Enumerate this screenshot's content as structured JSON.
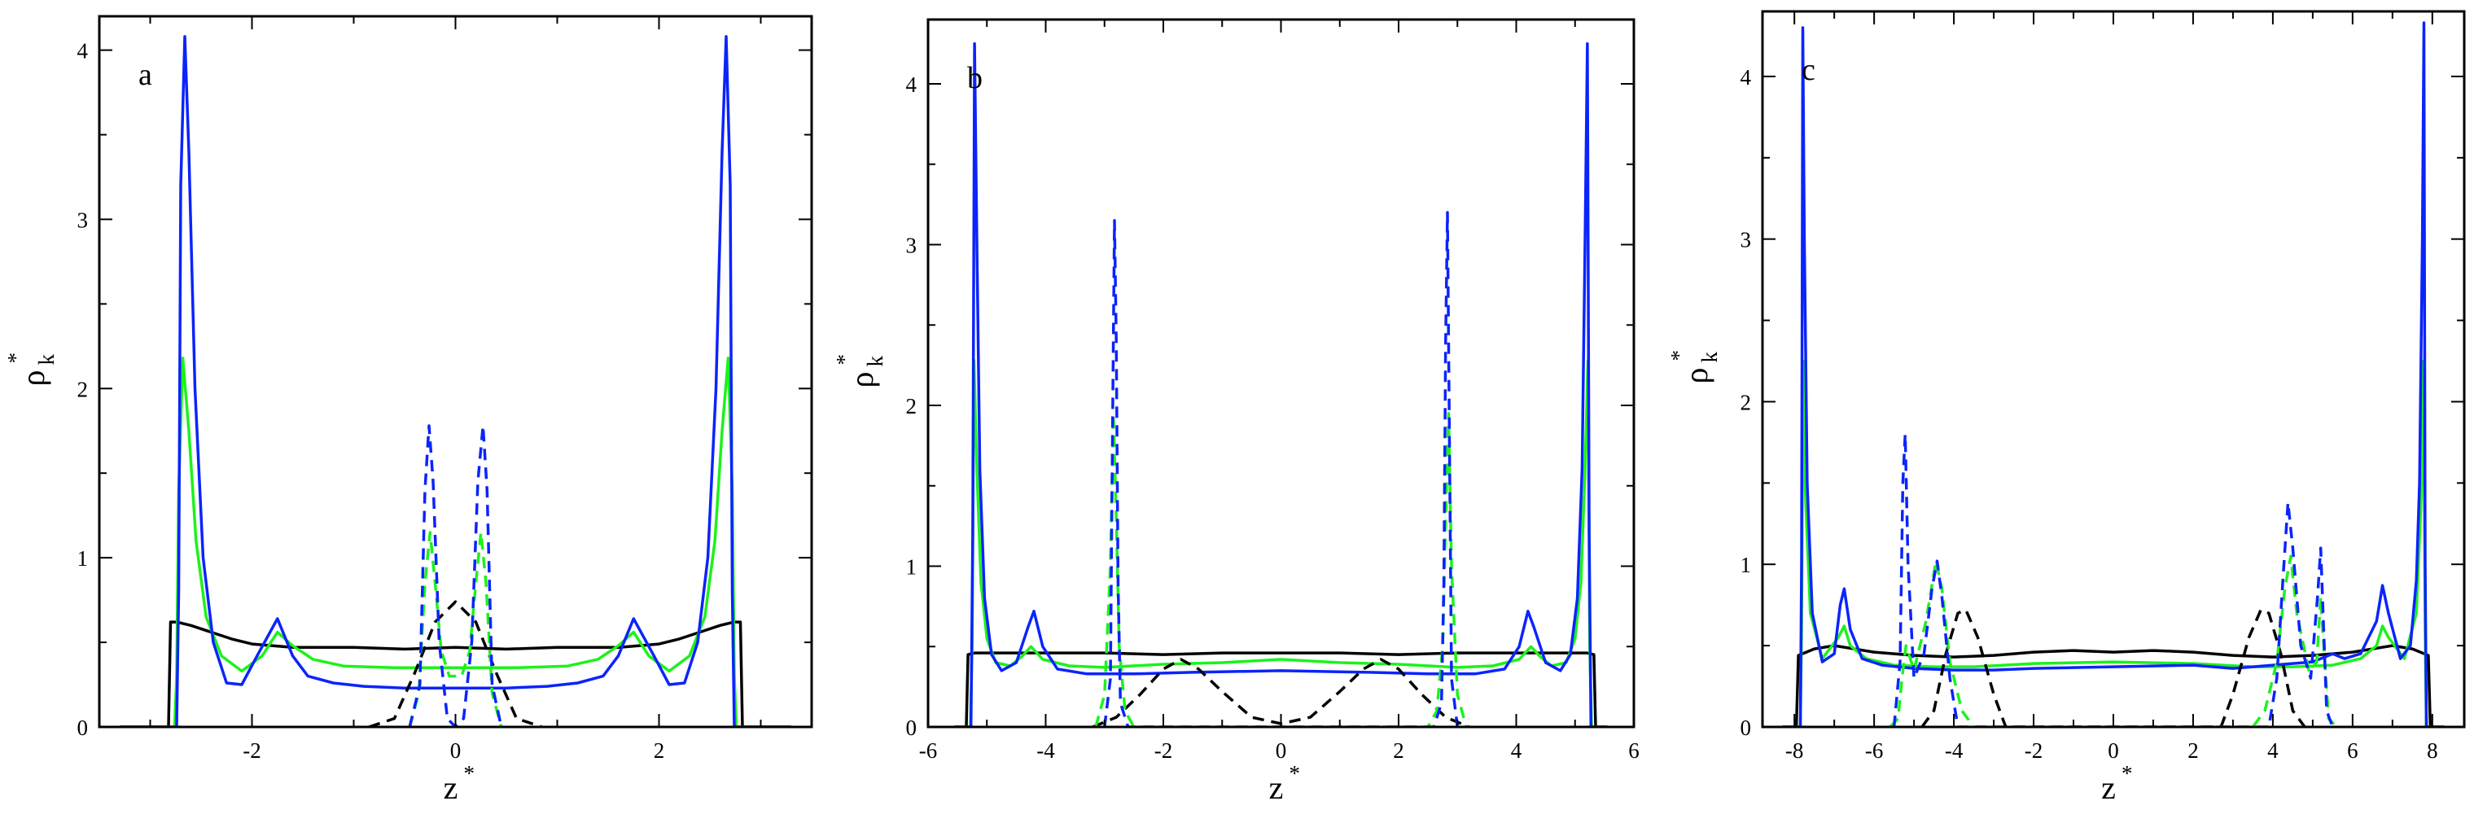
{
  "chart_data": [
    {
      "type": "line",
      "panel_label": "a",
      "xlabel": "z",
      "xlabel_sup": "*",
      "ylabel": "ρ",
      "ylabel_sub": "k",
      "ylabel_sup": "*",
      "xlim": [
        -3.5,
        3.5
      ],
      "ylim": [
        0,
        4.2
      ],
      "xticks": [
        -2,
        0,
        2
      ],
      "yticks": [
        0,
        1,
        2,
        3,
        4
      ],
      "colors": {
        "blue": "#0b24fb",
        "green": "#1cf21c",
        "black": "#000000"
      },
      "series": [
        {
          "color": "black",
          "style": "solid",
          "x": [
            -3.3,
            -2.82,
            -2.8,
            -2.74,
            -2.6,
            -2.4,
            -2.2,
            -2.0,
            -1.6,
            -1.0,
            -0.5,
            0,
            0.5,
            1.0,
            1.6,
            2.0,
            2.2,
            2.4,
            2.6,
            2.74,
            2.8,
            2.82,
            3.3
          ],
          "y": [
            0,
            0,
            0.62,
            0.62,
            0.6,
            0.56,
            0.52,
            0.49,
            0.47,
            0.47,
            0.46,
            0.47,
            0.46,
            0.47,
            0.47,
            0.49,
            0.52,
            0.56,
            0.6,
            0.62,
            0.62,
            0,
            0
          ]
        },
        {
          "color": "green",
          "style": "solid",
          "x": [
            -3.3,
            -2.76,
            -2.74,
            -2.72,
            -2.68,
            -2.62,
            -2.55,
            -2.45,
            -2.3,
            -2.1,
            -1.9,
            -1.75,
            -1.6,
            -1.4,
            -1.1,
            -0.6,
            0,
            0.6,
            1.1,
            1.4,
            1.6,
            1.75,
            1.9,
            2.1,
            2.3,
            2.45,
            2.55,
            2.62,
            2.68,
            2.72,
            2.74,
            2.76,
            3.3
          ],
          "y": [
            0,
            0,
            0.3,
            1.4,
            2.18,
            1.75,
            1.1,
            0.65,
            0.42,
            0.33,
            0.42,
            0.56,
            0.48,
            0.4,
            0.36,
            0.35,
            0.35,
            0.35,
            0.36,
            0.4,
            0.48,
            0.56,
            0.42,
            0.33,
            0.42,
            0.65,
            1.1,
            1.75,
            2.18,
            1.4,
            0.3,
            0,
            0
          ]
        },
        {
          "color": "blue",
          "style": "solid",
          "x": [
            -3.3,
            -2.74,
            -2.72,
            -2.7,
            -2.66,
            -2.62,
            -2.56,
            -2.48,
            -2.38,
            -2.25,
            -2.1,
            -1.95,
            -1.75,
            -1.6,
            -1.45,
            -1.2,
            -0.9,
            -0.5,
            0,
            0.5,
            0.9,
            1.2,
            1.45,
            1.6,
            1.75,
            1.95,
            2.1,
            2.25,
            2.38,
            2.48,
            2.56,
            2.62,
            2.66,
            2.7,
            2.72,
            2.74,
            3.3
          ],
          "y": [
            0,
            0,
            0.8,
            3.2,
            4.08,
            3.4,
            2.0,
            1.0,
            0.5,
            0.26,
            0.25,
            0.42,
            0.64,
            0.42,
            0.3,
            0.26,
            0.24,
            0.23,
            0.23,
            0.23,
            0.24,
            0.26,
            0.3,
            0.42,
            0.64,
            0.42,
            0.25,
            0.26,
            0.5,
            1.0,
            2.0,
            3.4,
            4.08,
            3.2,
            0.8,
            0,
            0
          ]
        },
        {
          "color": "black",
          "style": "dashed",
          "x": [
            -0.85,
            -0.6,
            -0.4,
            -0.2,
            0,
            0.2,
            0.4,
            0.6,
            0.85
          ],
          "y": [
            0,
            0.05,
            0.32,
            0.62,
            0.74,
            0.62,
            0.32,
            0.05,
            0
          ]
        },
        {
          "color": "green",
          "style": "dashed",
          "x": [
            -0.45,
            -0.36,
            -0.3,
            -0.25,
            -0.2,
            -0.14,
            -0.06,
            0.06,
            0.14,
            0.2,
            0.25,
            0.3,
            0.36,
            0.45
          ],
          "y": [
            0,
            0.2,
            0.85,
            1.15,
            0.85,
            0.45,
            0.3,
            0.3,
            0.45,
            0.85,
            1.15,
            0.85,
            0.2,
            0
          ]
        },
        {
          "color": "blue",
          "style": "dashed",
          "x": [
            -0.45,
            -0.35,
            -0.3,
            -0.26,
            -0.22,
            -0.16,
            -0.08,
            0,
            0.08,
            0.16,
            0.22,
            0.27,
            0.31,
            0.36,
            0.45
          ],
          "y": [
            0,
            0.25,
            1.4,
            1.78,
            1.45,
            0.5,
            0.05,
            0,
            0.05,
            0.5,
            1.45,
            1.78,
            1.4,
            0.25,
            0
          ]
        }
      ]
    },
    {
      "type": "line",
      "panel_label": "b",
      "xlabel": "z",
      "xlabel_sup": "*",
      "ylabel": "ρ",
      "ylabel_sub": "k",
      "ylabel_sup": "*",
      "xlim": [
        -6,
        6
      ],
      "ylim": [
        0,
        4.4
      ],
      "xticks": [
        -6,
        -4,
        -2,
        0,
        2,
        4,
        6
      ],
      "yticks": [
        0,
        1,
        2,
        3,
        4
      ],
      "colors": {
        "blue": "#0b24fb",
        "green": "#1cf21c",
        "black": "#000000"
      },
      "series": [
        {
          "color": "black",
          "style": "solid",
          "x": [
            -5.55,
            -5.35,
            -5.32,
            -5.2,
            -4.8,
            -4,
            -3,
            -2,
            -1,
            0,
            1,
            2,
            3,
            4,
            4.8,
            5.2,
            5.32,
            5.35,
            5.55
          ],
          "y": [
            0,
            0,
            0.45,
            0.46,
            0.46,
            0.46,
            0.46,
            0.45,
            0.46,
            0.46,
            0.46,
            0.45,
            0.46,
            0.46,
            0.46,
            0.46,
            0.45,
            0,
            0
          ]
        },
        {
          "color": "green",
          "style": "solid",
          "x": [
            -5.55,
            -5.28,
            -5.25,
            -5.22,
            -5.17,
            -5.1,
            -5.0,
            -4.85,
            -4.6,
            -4.4,
            -4.25,
            -4.05,
            -3.6,
            -3.0,
            -2.0,
            -1.0,
            0,
            1.0,
            2.0,
            3.0,
            3.6,
            4.05,
            4.25,
            4.4,
            4.6,
            4.85,
            5.0,
            5.1,
            5.17,
            5.22,
            5.25,
            5.28,
            5.55
          ],
          "y": [
            0,
            0,
            0.5,
            2.28,
            1.6,
            0.9,
            0.55,
            0.4,
            0.38,
            0.44,
            0.5,
            0.42,
            0.38,
            0.37,
            0.39,
            0.4,
            0.42,
            0.4,
            0.39,
            0.37,
            0.38,
            0.42,
            0.5,
            0.44,
            0.38,
            0.4,
            0.55,
            0.9,
            1.6,
            2.28,
            0.5,
            0,
            0
          ]
        },
        {
          "color": "blue",
          "style": "solid",
          "x": [
            -5.55,
            -5.27,
            -5.24,
            -5.21,
            -5.17,
            -5.12,
            -5.04,
            -4.92,
            -4.75,
            -4.5,
            -4.3,
            -4.2,
            -4.05,
            -3.8,
            -3.3,
            -2.5,
            -1.5,
            0,
            1.5,
            2.5,
            3.3,
            3.8,
            4.05,
            4.2,
            4.3,
            4.5,
            4.75,
            4.92,
            5.04,
            5.12,
            5.17,
            5.21,
            5.24,
            5.27,
            5.55
          ],
          "y": [
            0,
            0,
            1.2,
            4.25,
            3.0,
            1.6,
            0.8,
            0.45,
            0.35,
            0.4,
            0.62,
            0.72,
            0.5,
            0.36,
            0.33,
            0.33,
            0.34,
            0.35,
            0.34,
            0.33,
            0.33,
            0.36,
            0.5,
            0.72,
            0.62,
            0.4,
            0.35,
            0.45,
            0.8,
            1.6,
            3.0,
            4.25,
            1.2,
            0,
            0
          ]
        },
        {
          "color": "black",
          "style": "dashed",
          "x": [
            -3.2,
            -2.8,
            -2.4,
            -2.0,
            -1.7,
            -1.4,
            -1.0,
            -0.5,
            0,
            0.5,
            1.0,
            1.4,
            1.7,
            2.0,
            2.4,
            2.8,
            3.2
          ],
          "y": [
            0,
            0.06,
            0.2,
            0.36,
            0.42,
            0.36,
            0.22,
            0.06,
            0.02,
            0.06,
            0.22,
            0.36,
            0.42,
            0.36,
            0.2,
            0.06,
            0
          ]
        },
        {
          "color": "green",
          "style": "dashed",
          "x": [
            -3.15,
            -3.0,
            -2.9,
            -2.85,
            -2.8,
            -2.75,
            -2.65,
            -2.5,
            2.5,
            2.65,
            2.75,
            2.8,
            2.85,
            2.9,
            3.0,
            3.15
          ],
          "y": [
            0,
            0.2,
            1.0,
            1.95,
            1.3,
            0.5,
            0.1,
            0,
            0,
            0.1,
            0.5,
            1.3,
            1.95,
            1.0,
            0.2,
            0
          ]
        },
        {
          "color": "blue",
          "style": "dashed",
          "x": [
            -3.0,
            -2.9,
            -2.86,
            -2.83,
            -2.8,
            -2.77,
            -2.73,
            -2.6,
            2.6,
            2.73,
            2.77,
            2.8,
            2.83,
            2.86,
            2.9,
            3.0
          ],
          "y": [
            0,
            0.3,
            2.0,
            3.15,
            2.4,
            0.9,
            0.15,
            0,
            0,
            0.15,
            0.9,
            2.4,
            3.2,
            2.0,
            0.3,
            0
          ]
        }
      ]
    },
    {
      "type": "line",
      "panel_label": "c",
      "xlabel": "z",
      "xlabel_sup": "*",
      "ylabel": "ρ",
      "ylabel_sub": "k",
      "ylabel_sup": "*",
      "xlim": [
        -8.8,
        8.8
      ],
      "ylim": [
        0,
        4.4
      ],
      "xticks": [
        -8,
        -6,
        -4,
        -2,
        0,
        2,
        4,
        6,
        8
      ],
      "yticks": [
        0,
        1,
        2,
        3,
        4
      ],
      "colors": {
        "blue": "#0b24fb",
        "green": "#1cf21c",
        "black": "#000000"
      },
      "series": [
        {
          "color": "black",
          "style": "solid",
          "x": [
            -8.3,
            -7.95,
            -7.9,
            -7.5,
            -7.0,
            -6.0,
            -5.0,
            -4.0,
            -3.0,
            -2.0,
            -1.0,
            0,
            1.0,
            2.0,
            3.0,
            4.0,
            5.0,
            6.0,
            7.0,
            7.5,
            7.9,
            7.95,
            8.3
          ],
          "y": [
            0,
            0,
            0.44,
            0.48,
            0.5,
            0.46,
            0.44,
            0.43,
            0.44,
            0.46,
            0.47,
            0.46,
            0.47,
            0.46,
            0.44,
            0.43,
            0.44,
            0.46,
            0.5,
            0.48,
            0.44,
            0,
            0
          ]
        },
        {
          "color": "green",
          "style": "solid",
          "x": [
            -8.3,
            -7.85,
            -7.82,
            -7.78,
            -7.72,
            -7.6,
            -7.3,
            -6.9,
            -6.75,
            -6.6,
            -6.2,
            -5.5,
            -4.5,
            -3.5,
            -2.0,
            0,
            2.0,
            3.5,
            4.5,
            5.5,
            6.2,
            6.6,
            6.75,
            6.9,
            7.3,
            7.6,
            7.72,
            7.78,
            7.82,
            7.85,
            8.3
          ],
          "y": [
            0,
            0,
            0.6,
            2.25,
            1.4,
            0.7,
            0.42,
            0.55,
            0.62,
            0.5,
            0.42,
            0.38,
            0.37,
            0.37,
            0.39,
            0.4,
            0.39,
            0.37,
            0.37,
            0.38,
            0.42,
            0.5,
            0.62,
            0.55,
            0.42,
            0.7,
            1.4,
            2.25,
            0.6,
            0,
            0
          ]
        },
        {
          "color": "blue",
          "style": "solid",
          "x": [
            -8.3,
            -7.85,
            -7.82,
            -7.79,
            -7.75,
            -7.68,
            -7.55,
            -7.3,
            -7.0,
            -6.85,
            -6.75,
            -6.6,
            -6.3,
            -5.8,
            -5.0,
            -4.0,
            -3.0,
            -2.0,
            0,
            2.0,
            3.0,
            4.0,
            5.0,
            5.5,
            5.8,
            6.2,
            6.6,
            6.75,
            6.9,
            7.2,
            7.45,
            7.6,
            7.68,
            7.75,
            7.79,
            7.82,
            7.85,
            8.3
          ],
          "y": [
            0,
            0,
            1.0,
            4.3,
            3.0,
            1.5,
            0.7,
            0.4,
            0.45,
            0.75,
            0.85,
            0.6,
            0.42,
            0.38,
            0.36,
            0.35,
            0.35,
            0.36,
            0.37,
            0.38,
            0.36,
            0.38,
            0.4,
            0.45,
            0.42,
            0.45,
            0.65,
            0.87,
            0.7,
            0.42,
            0.5,
            0.9,
            1.5,
            3.0,
            4.33,
            1.0,
            0,
            0
          ]
        },
        {
          "color": "black",
          "style": "dashed",
          "x": [
            -4.8,
            -4.5,
            -4.2,
            -3.9,
            -3.7,
            -3.4,
            -3.0,
            -2.7,
            2.7,
            3.0,
            3.4,
            3.7,
            3.9,
            4.2,
            4.5,
            4.8
          ],
          "y": [
            0,
            0.1,
            0.45,
            0.7,
            0.72,
            0.55,
            0.2,
            0,
            0,
            0.2,
            0.55,
            0.72,
            0.7,
            0.45,
            0.1,
            0
          ]
        },
        {
          "color": "green",
          "style": "dashed",
          "x": [
            -5.6,
            -5.4,
            -5.3,
            -5.2,
            -5.0,
            -4.7,
            -4.45,
            -4.3,
            -4.1,
            -3.8,
            -3.5,
            3.5,
            3.8,
            4.1,
            4.3,
            4.45,
            4.6,
            4.9,
            5.1,
            5.2,
            5.3,
            5.4,
            5.6
          ],
          "y": [
            0,
            0.05,
            0.3,
            0.5,
            0.35,
            0.65,
            1.02,
            0.85,
            0.4,
            0.1,
            0,
            0,
            0.1,
            0.4,
            0.85,
            1.05,
            0.7,
            0.35,
            0.4,
            0.8,
            0.4,
            0.05,
            0
          ]
        },
        {
          "color": "blue",
          "style": "dashed",
          "x": [
            -5.5,
            -5.35,
            -5.28,
            -5.22,
            -5.15,
            -5.0,
            -4.75,
            -4.55,
            -4.42,
            -4.3,
            -4.1,
            -3.9,
            3.9,
            4.1,
            4.25,
            4.38,
            4.5,
            4.7,
            4.95,
            5.12,
            5.2,
            5.26,
            5.35,
            5.5
          ],
          "y": [
            0,
            0.4,
            1.5,
            1.8,
            1.0,
            0.3,
            0.45,
            0.85,
            1.02,
            0.8,
            0.3,
            0,
            0,
            0.3,
            0.9,
            1.38,
            1.1,
            0.5,
            0.3,
            0.8,
            1.1,
            0.7,
            0.1,
            0
          ]
        }
      ]
    }
  ]
}
